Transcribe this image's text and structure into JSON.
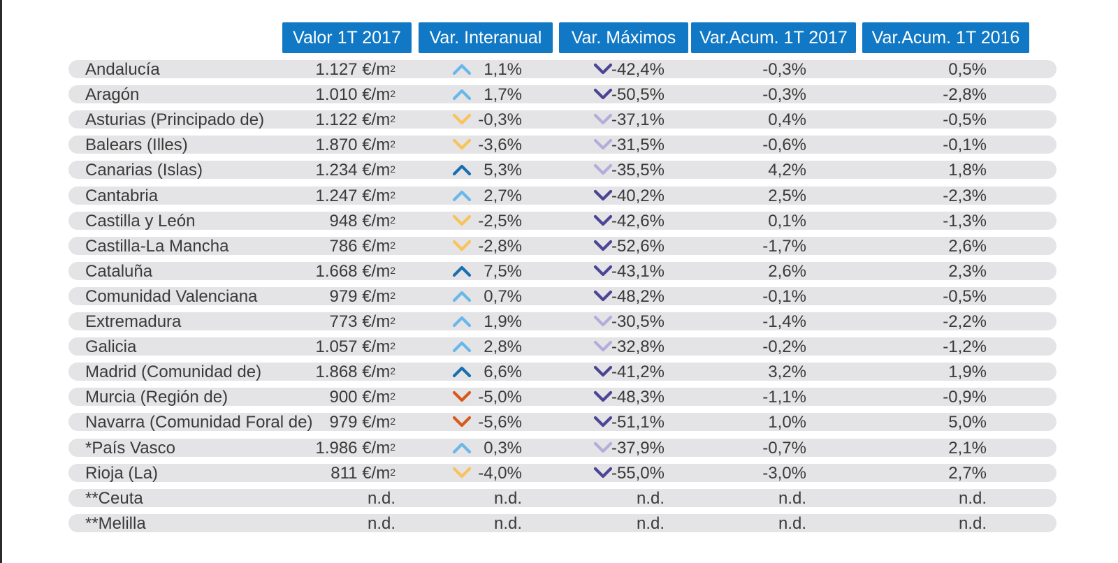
{
  "colors": {
    "header_bg": "#1078c4",
    "row_bg": "#e4e4e6",
    "up_light": "#6ab7ea",
    "up_dark": "#1a6fb0",
    "down_yellow": "#f7c35a",
    "down_orange": "#d8591e",
    "down_dark_purple": "#4a4594",
    "down_light_purple": "#b3addb"
  },
  "headers": [
    "Valor 1T 2017",
    "Var. Interanual",
    "Var. Máximos",
    "Var.Acum. 1T 2017",
    "Var.Acum. 1T 2016"
  ],
  "chart_data": {
    "type": "table",
    "columns": [
      "",
      "Valor 1T 2017",
      "Var. Interanual",
      "Var. Máximos",
      "Var.Acum. 1T 2017",
      "Var.Acum. 1T 2016"
    ],
    "rows": [
      {
        "region": "Andalucía",
        "valor": "1.127 €/m",
        "inter": "1,1%",
        "inter_icon": "up-light",
        "max": "-42,4%",
        "max_icon": "down-dark",
        "acum2017": "-0,3%",
        "acum2016": "0,5%"
      },
      {
        "region": "Aragón",
        "valor": "1.010 €/m",
        "inter": "1,7%",
        "inter_icon": "up-light",
        "max": "-50,5%",
        "max_icon": "down-dark",
        "acum2017": "-0,3%",
        "acum2016": "-2,8%"
      },
      {
        "region": "Asturias (Principado de)",
        "valor": "1.122 €/m",
        "inter": "-0,3%",
        "inter_icon": "down-yellow",
        "max": "-37,1%",
        "max_icon": "down-light",
        "acum2017": "0,4%",
        "acum2016": "-0,5%"
      },
      {
        "region": "Balears (Illes)",
        "valor": "1.870 €/m",
        "inter": "-3,6%",
        "inter_icon": "down-yellow",
        "max": "-31,5%",
        "max_icon": "down-light",
        "acum2017": "-0,6%",
        "acum2016": "-0,1%"
      },
      {
        "region": "Canarias (Islas)",
        "valor": "1.234 €/m",
        "inter": "5,3%",
        "inter_icon": "up-dark",
        "max": "-35,5%",
        "max_icon": "down-light",
        "acum2017": "4,2%",
        "acum2016": "1,8%"
      },
      {
        "region": "Cantabria",
        "valor": "1.247 €/m",
        "inter": "2,7%",
        "inter_icon": "up-light",
        "max": "-40,2%",
        "max_icon": "down-dark",
        "acum2017": "2,5%",
        "acum2016": "-2,3%"
      },
      {
        "region": "Castilla y León",
        "valor": "948 €/m",
        "inter": "-2,5%",
        "inter_icon": "down-yellow",
        "max": "-42,6%",
        "max_icon": "down-dark",
        "acum2017": "0,1%",
        "acum2016": "-1,3%"
      },
      {
        "region": "Castilla-La Mancha",
        "valor": "786 €/m",
        "inter": "-2,8%",
        "inter_icon": "down-yellow",
        "max": "-52,6%",
        "max_icon": "down-dark",
        "acum2017": "-1,7%",
        "acum2016": "2,6%"
      },
      {
        "region": "Cataluña",
        "valor": "1.668 €/m",
        "inter": "7,5%",
        "inter_icon": "up-dark",
        "max": "-43,1%",
        "max_icon": "down-dark",
        "acum2017": "2,6%",
        "acum2016": "2,3%"
      },
      {
        "region": "Comunidad Valenciana",
        "valor": "979 €/m",
        "inter": "0,7%",
        "inter_icon": "up-light",
        "max": "-48,2%",
        "max_icon": "down-dark",
        "acum2017": "-0,1%",
        "acum2016": "-0,5%"
      },
      {
        "region": "Extremadura",
        "valor": "773 €/m",
        "inter": "1,9%",
        "inter_icon": "up-light",
        "max": "-30,5%",
        "max_icon": "down-light",
        "acum2017": "-1,4%",
        "acum2016": "-2,2%"
      },
      {
        "region": "Galicia",
        "valor": "1.057 €/m",
        "inter": "2,8%",
        "inter_icon": "up-light",
        "max": "-32,8%",
        "max_icon": "down-light",
        "acum2017": "-0,2%",
        "acum2016": "-1,2%"
      },
      {
        "region": "Madrid (Comunidad de)",
        "valor": "1.868 €/m",
        "inter": "6,6%",
        "inter_icon": "up-dark",
        "max": "-41,2%",
        "max_icon": "down-dark",
        "acum2017": "3,2%",
        "acum2016": "1,9%"
      },
      {
        "region": "Murcia (Región de)",
        "valor": "900 €/m",
        "inter": "-5,0%",
        "inter_icon": "down-orange",
        "max": "-48,3%",
        "max_icon": "down-dark",
        "acum2017": "-1,1%",
        "acum2016": "-0,9%"
      },
      {
        "region": "Navarra (Comunidad Foral de)",
        "valor": "979 €/m",
        "inter": "-5,6%",
        "inter_icon": "down-orange",
        "max": "-51,1%",
        "max_icon": "down-dark",
        "acum2017": "1,0%",
        "acum2016": "5,0%"
      },
      {
        "region": "*País Vasco",
        "valor": "1.986 €/m",
        "inter": "0,3%",
        "inter_icon": "up-light",
        "max": "-37,9%",
        "max_icon": "down-light",
        "acum2017": "-0,7%",
        "acum2016": "2,1%"
      },
      {
        "region": "Rioja (La)",
        "valor": "811 €/m",
        "inter": "-4,0%",
        "inter_icon": "down-yellow",
        "max": "-55,0%",
        "max_icon": "down-dark",
        "acum2017": "-3,0%",
        "acum2016": "2,7%"
      },
      {
        "region": "**Ceuta",
        "valor": "n.d.",
        "inter": "n.d.",
        "inter_icon": "",
        "max": "n.d.",
        "max_icon": "",
        "acum2017": "n.d.",
        "acum2016": "n.d."
      },
      {
        "region": "**Melilla",
        "valor": "n.d.",
        "inter": "n.d.",
        "inter_icon": "",
        "max": "n.d.",
        "max_icon": "",
        "acum2017": "n.d.",
        "acum2016": "n.d."
      }
    ]
  },
  "unit_sup": "2"
}
